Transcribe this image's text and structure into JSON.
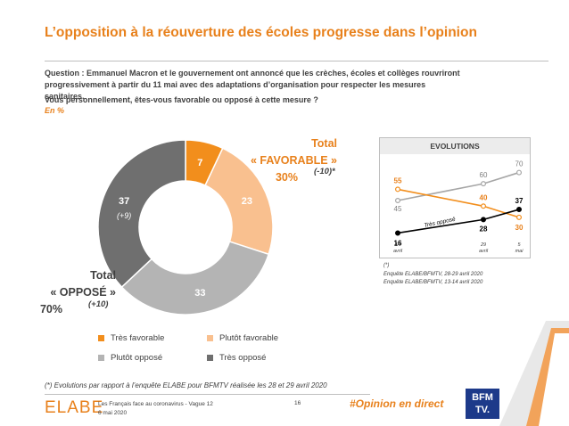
{
  "title": "L’opposition à la réouverture des écoles progresse dans l’opinion",
  "question": "Question : Emmanuel Macron et le gouvernement ont annoncé que les crèches, écoles et collèges rouvriront progressivement à partir du 11 mai avec des adaptations d’organisation pour respecter les mesures sanitaires.",
  "question2": "Vous personnellement, êtes-vous favorable ou opposé à cette mesure ?",
  "unit": "En %",
  "totals": {
    "favorable_line1": "Total",
    "favorable_line2": "« FAVORABLE »",
    "favorable_value": "30%",
    "favorable_delta": "(-10)*",
    "oppose_line1": "Total",
    "oppose_line2": "« OPPOSÉ »",
    "oppose_value": "70%",
    "oppose_delta": "(+10)"
  },
  "legend": {
    "tres_favorable": "Très favorable",
    "plutot_favorable": "Plutôt favorable",
    "plutot_oppose": "Plutôt opposé",
    "tres_oppose": "Très opposé"
  },
  "colors": {
    "tres_favorable": "#f28e1c",
    "plutot_favorable": "#f9c08f",
    "plutot_oppose": "#b4b4b4",
    "tres_oppose": "#6f6f6f",
    "accent": "#e8811c"
  },
  "evolutions": {
    "title": "EVOLUTIONS",
    "x_labels": [
      {
        "day": "14",
        "month": "avril"
      },
      {
        "day": "29",
        "month": "avril"
      },
      {
        "day": "5",
        "month": "mai"
      }
    ],
    "series_label": "Très opposé",
    "footnote_mark": "(*)",
    "source1": "Enquête ELABE/BFMTV, 28-29 avril 2020",
    "source2": "Enquête ELABE/BFMTV, 13-14 avril 2020"
  },
  "chart_data": [
    {
      "type": "pie",
      "labels": [
        "Très favorable",
        "Plutôt favorable",
        "Plutôt opposé",
        "Très opposé"
      ],
      "values": [
        7,
        23,
        33,
        37
      ],
      "annotations": {
        "Très opposé": "(+9)"
      }
    },
    {
      "type": "line",
      "title": "EVOLUTIONS",
      "x": [
        "14 avril",
        "29 avril",
        "5 mai"
      ],
      "ylim": [
        10,
        80
      ],
      "series": [
        {
          "values": [
            45,
            60,
            70
          ],
          "color": "#a6a6a6"
        },
        {
          "values": [
            55,
            40,
            30
          ],
          "color": "#f28e1c"
        },
        {
          "name": "Très opposé",
          "values": [
            16,
            28,
            37
          ],
          "color": "#000000"
        }
      ]
    }
  ],
  "footer": {
    "note": "(*) Evolutions par rapport à l’enquête ELABE pour BFMTV réalisée les 28 et 29 avril 2020",
    "brand": "ELABE",
    "survey_line": "Les Français face au coronavirus - Vague 12",
    "date": "6 mai 2020",
    "page": "16",
    "hashtag": "#Opinion en direct",
    "logo_line1": "BFM",
    "logo_line2": "TV."
  }
}
